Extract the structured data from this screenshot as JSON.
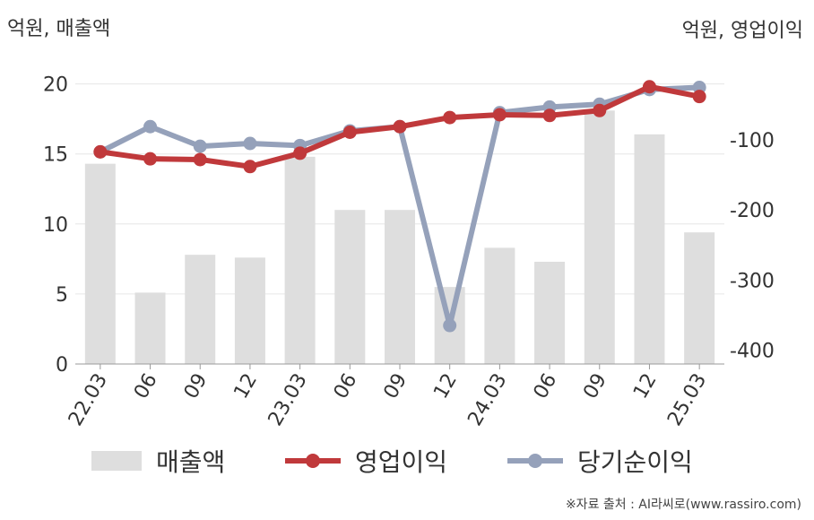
{
  "left_axis_title": "억원, 매출액",
  "right_axis_title": "억원, 영업이익",
  "source_note": "※자료 출처 : AI라씨로(www.rassiro.com)",
  "colors": {
    "revenue": "#dedede",
    "operating_profit": "#c0393b",
    "net_income": "#95a1ba",
    "gridline": "#e6e6e6",
    "axis": "#999999",
    "text": "#333333"
  },
  "chart_data": {
    "type": "bar",
    "categories": [
      "22.03",
      "06",
      "09",
      "12",
      "23.03",
      "06",
      "09",
      "12",
      "24.03",
      "06",
      "09",
      "12",
      "25.03"
    ],
    "left_ylim": [
      0,
      21
    ],
    "left_ticks": [
      "0",
      "5",
      "10",
      "15",
      "20"
    ],
    "left_tick_values": [
      0,
      5,
      10,
      15,
      20
    ],
    "right_ylim": [
      -420,
      0
    ],
    "right_ticks": [
      "-100",
      "-200",
      "-300",
      "-400"
    ],
    "right_tick_values": [
      -100,
      -200,
      -300,
      -400
    ],
    "series": [
      {
        "name": "매출액",
        "kind": "bar",
        "axis": "left",
        "values": [
          14.3,
          5.1,
          7.8,
          7.6,
          14.8,
          11.0,
          11.0,
          5.5,
          8.3,
          7.3,
          18.1,
          16.4,
          9.4
        ]
      },
      {
        "name": "영업이익",
        "kind": "line",
        "axis": "right",
        "values": [
          -117,
          -127,
          -128,
          -138,
          -119,
          -89,
          -81,
          -68,
          -64,
          -65,
          -58,
          -24,
          -38
        ]
      },
      {
        "name": "당기순이익",
        "kind": "line",
        "axis": "right",
        "values": [
          -117,
          -81,
          -109,
          -105,
          -108,
          -87,
          -81,
          -365,
          -61,
          -53,
          -49,
          -28,
          -25
        ]
      }
    ],
    "grid": true,
    "legend_position": "bottom"
  }
}
